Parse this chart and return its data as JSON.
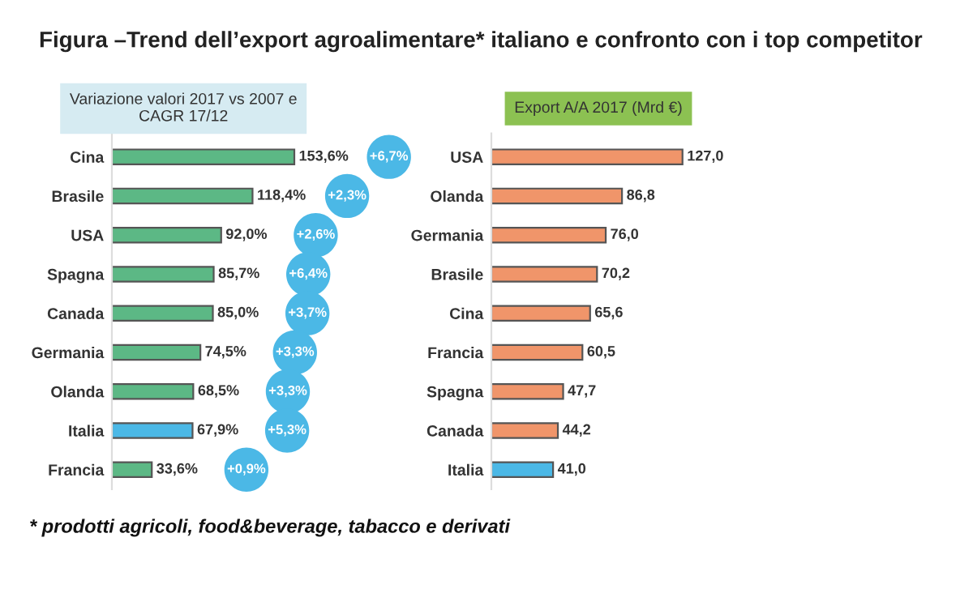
{
  "chart_data": [
    {
      "type": "bar",
      "orientation": "horizontal",
      "title": "Figura –Trend dell’export agroalimentare* italiano e confronto con i top competitor",
      "subtitle": "Variazione valori 2017 vs 2007 e\nCAGR 17/12",
      "categories": [
        "Cina",
        "Brasile",
        "USA",
        "Spagna",
        "Canada",
        "Germania",
        "Olanda",
        "Italia",
        "Francia"
      ],
      "values": [
        153.6,
        118.4,
        92.0,
        85.7,
        85.0,
        74.5,
        68.5,
        67.9,
        33.6
      ],
      "value_labels": [
        "153,6%",
        "118,4%",
        "92,0%",
        "85,7%",
        "85,0%",
        "74,5%",
        "68,5%",
        "67,9%",
        "33,6%"
      ],
      "colors": [
        "#5cb885",
        "#5cb885",
        "#5cb885",
        "#5cb885",
        "#5cb885",
        "#5cb885",
        "#5cb885",
        "#4bb8e6",
        "#5cb885"
      ],
      "annotations": [
        "+6,7%",
        "+2,3%",
        "+2,6%",
        "+6,4%",
        "+3,7%",
        "+3,3%",
        "+3,3%",
        "+5,3%",
        "+0,9%"
      ]
    },
    {
      "type": "bar",
      "orientation": "horizontal",
      "title": "Export A/A 2017 (Mrd €)",
      "categories": [
        "USA",
        "Olanda",
        "Germania",
        "Brasile",
        "Cina",
        "Francia",
        "Spagna",
        "Canada",
        "Italia"
      ],
      "values": [
        127.0,
        86.8,
        76.0,
        70.2,
        65.6,
        60.5,
        47.7,
        44.2,
        41.0
      ],
      "value_labels": [
        "127,0",
        "86,8",
        "76,0",
        "70,2",
        "65,6",
        "60,5",
        "47,7",
        "44,2",
        "41,0"
      ],
      "annotations": [
        "* prodotti agricoli, food&beverage, tabacco e derivati"
      ],
      "colors": [
        "#f0956a",
        "#f0956a",
        "#f0956a",
        "#f0956a",
        "#f0956a",
        "#f0956a",
        "#f0956a",
        "#f0956a",
        "#4bb8e6"
      ]
    }
  ]
}
